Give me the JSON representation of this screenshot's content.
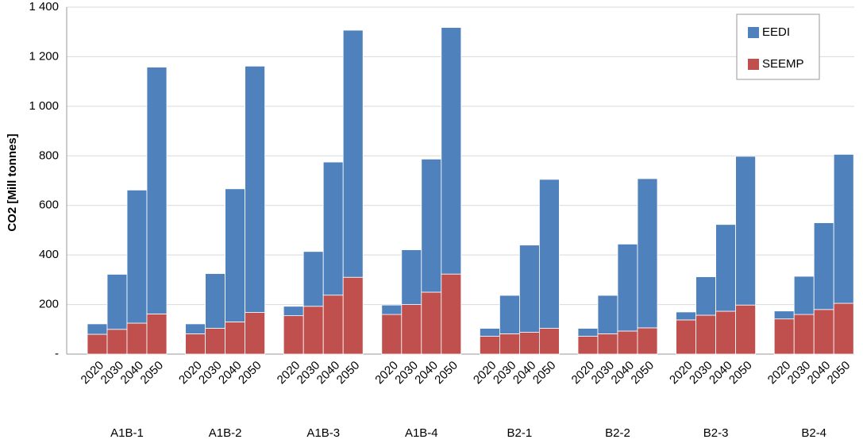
{
  "chart_data": {
    "type": "stacked_bar",
    "y_label": "CO2  [Mill tonnes]",
    "groups": [
      "A1B-1",
      "A1B-2",
      "A1B-3",
      "A1B-4",
      "B2-1",
      "B2-2",
      "B2-3",
      "B2-4"
    ],
    "categories": [
      "2020",
      "2030",
      "2040",
      "2050",
      "2020",
      "2030",
      "2040",
      "2050",
      "2020",
      "2030",
      "2040",
      "2050",
      "2020",
      "2030",
      "2040",
      "2050",
      "2020",
      "2030",
      "2040",
      "2050",
      "2020",
      "2030",
      "2040",
      "2050",
      "2020",
      "2030",
      "2040",
      "2050",
      "2020",
      "2030",
      "2040",
      "2050"
    ],
    "series": [
      {
        "name": "EEDI",
        "color": "#4f81bd",
        "values": [
          42,
          222,
          537,
          996,
          40,
          221,
          537,
          994,
          38,
          221,
          537,
          997,
          38,
          221,
          537,
          995,
          32,
          155,
          352,
          601,
          32,
          155,
          351,
          602,
          32,
          155,
          350,
          600,
          32,
          154,
          350,
          601
        ]
      },
      {
        "name": "SEEMP",
        "color": "#c0504d",
        "values": [
          80,
          100,
          125,
          162,
          82,
          104,
          130,
          168,
          155,
          193,
          238,
          310,
          160,
          200,
          250,
          323,
          72,
          82,
          88,
          104,
          72,
          82,
          93,
          106,
          138,
          157,
          173,
          198,
          142,
          160,
          180,
          205
        ]
      }
    ],
    "ylim": [
      0,
      1400
    ],
    "yticks": [
      {
        "value": 0,
        "label": "-"
      },
      200,
      400,
      600,
      800,
      {
        "value": 1000,
        "label": "1 000"
      },
      {
        "value": 1200,
        "label": "1 200"
      },
      {
        "value": 1400,
        "label": "1 400"
      }
    ],
    "grid": true,
    "legend": "top-right"
  }
}
